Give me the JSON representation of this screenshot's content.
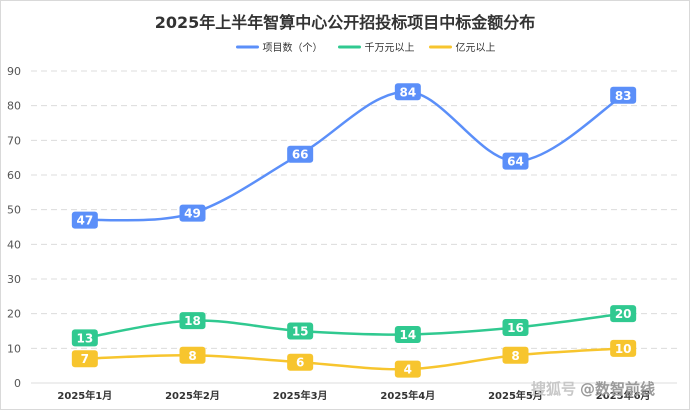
{
  "chart_data": {
    "type": "line",
    "title": "2025年上半年智算中心公开招投标项目中标金额分布",
    "categories": [
      "2025年1月",
      "2025年2月",
      "2025年3月",
      "2025年4月",
      "2025年5月",
      "2025年6月"
    ],
    "series": [
      {
        "name": "项目数（个）",
        "values": [
          47,
          49,
          66,
          84,
          64,
          83
        ],
        "color": "#5b8ff9"
      },
      {
        "name": "千万元以上",
        "values": [
          13,
          18,
          15,
          14,
          16,
          20
        ],
        "color": "#30c990"
      },
      {
        "name": "亿元以上",
        "values": [
          7,
          8,
          6,
          4,
          8,
          10
        ],
        "color": "#f7c52e"
      }
    ],
    "ylim": [
      0,
      90
    ],
    "yticks": [
      0,
      10,
      20,
      30,
      40,
      50,
      60,
      70,
      80,
      90
    ],
    "xlabel": "",
    "ylabel": "",
    "grid": true,
    "legend": "top-center",
    "smooth": true,
    "data_labels": true
  },
  "watermark": {
    "text": "搜狐号",
    "handle": "@数智前线"
  }
}
